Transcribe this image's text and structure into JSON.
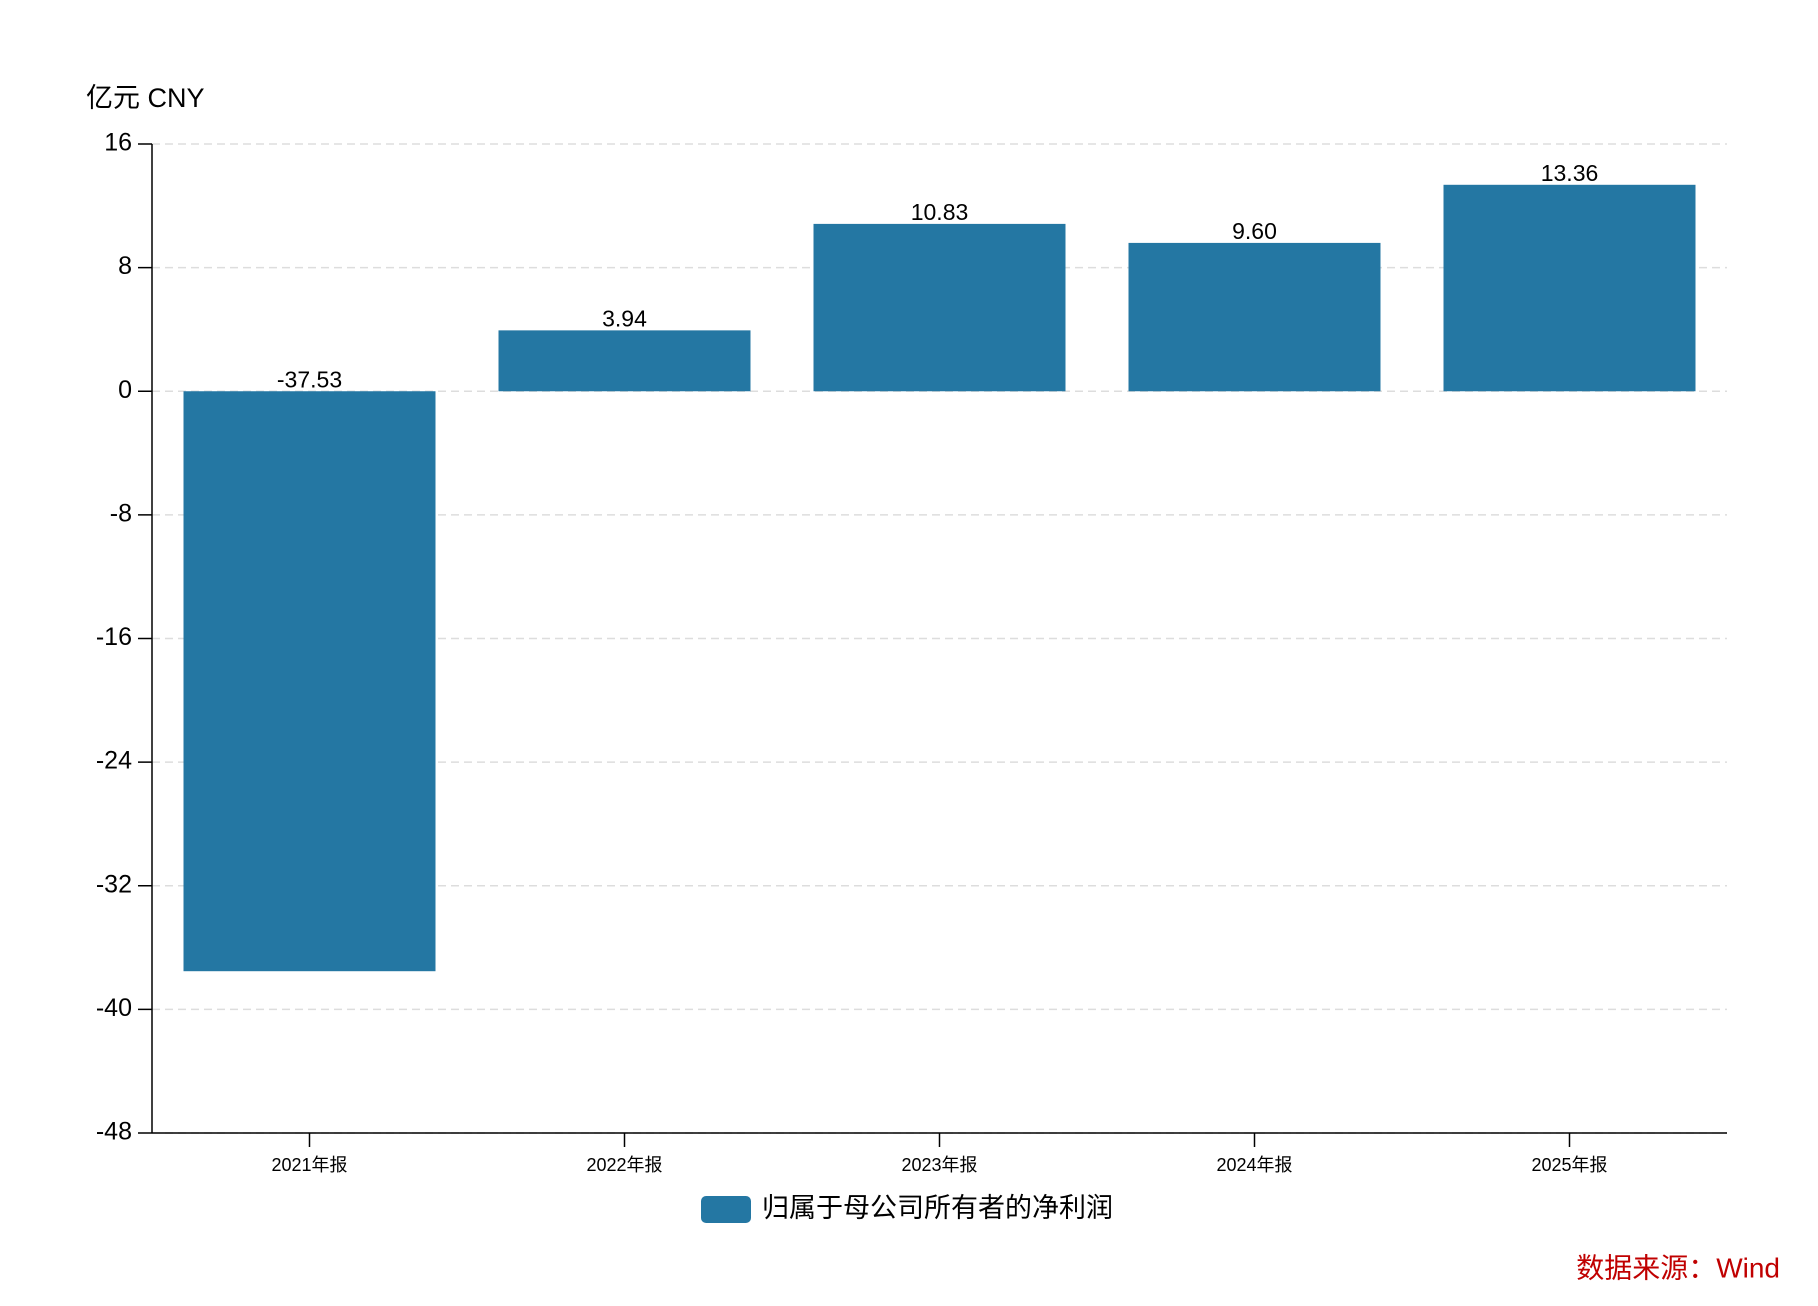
{
  "chart_data": {
    "type": "bar",
    "y_label": "亿元  CNY",
    "categories": [
      "2021年报",
      "2022年报",
      "2023年报",
      "2024年报",
      "2025年报"
    ],
    "series": [
      {
        "name": "归属于母公司所有者的净利润",
        "color": "#2477a3",
        "values": [
          -37.53,
          3.94,
          10.83,
          9.6,
          13.36
        ],
        "value_labels": [
          "-37.53",
          "3.94",
          "10.83",
          "9.60",
          "13.36"
        ]
      }
    ],
    "ylim": [
      -48,
      16
    ],
    "yticks": [
      -48,
      -40,
      -32,
      -24,
      -16,
      -8,
      0,
      8,
      16
    ],
    "grid": true,
    "source": "数据来源：Wind"
  }
}
